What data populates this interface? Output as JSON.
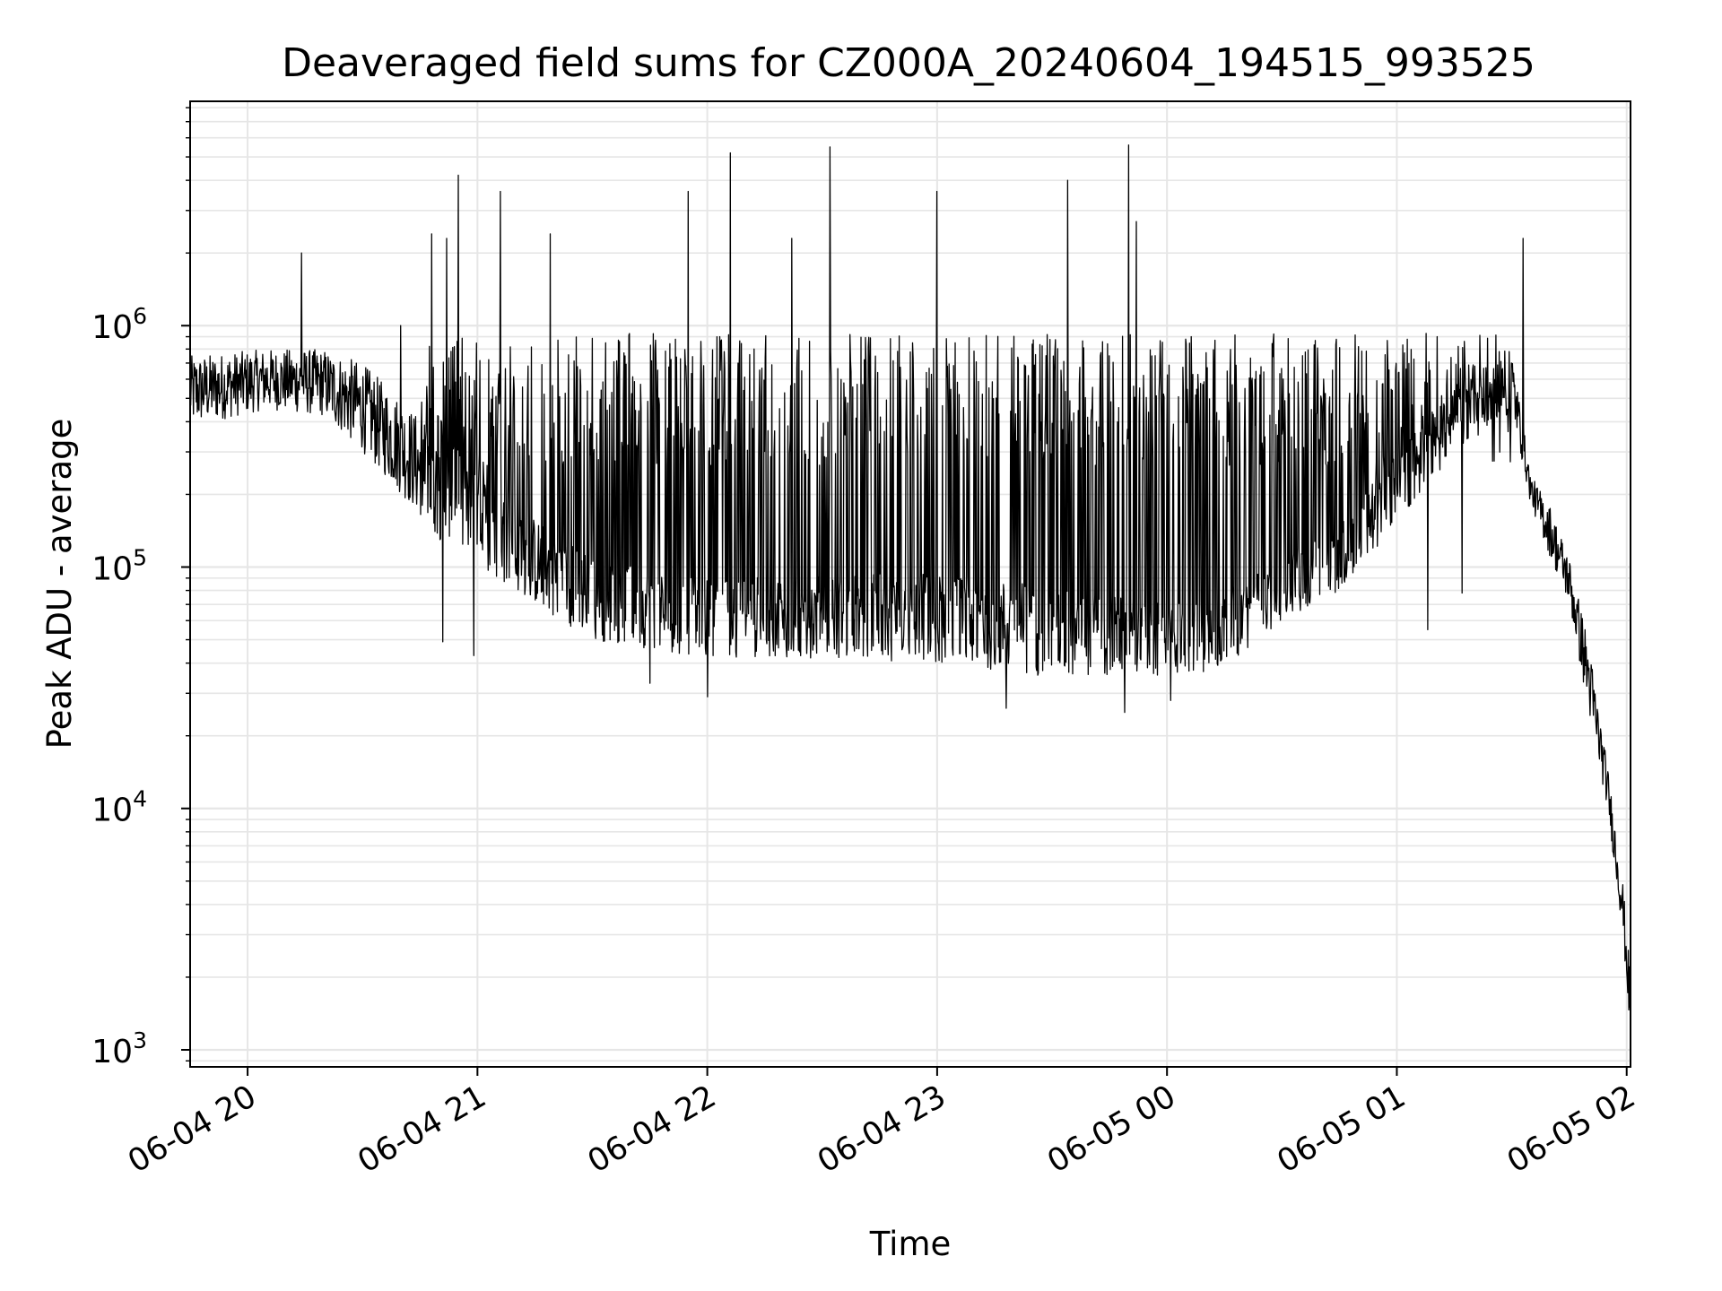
{
  "chart_data": {
    "type": "line",
    "title": "Deaveraged field sums for CZ000A_20240604_194515_993525",
    "xlabel": "Time",
    "ylabel": "Peak ADU - average",
    "yscale": "log",
    "xlim": [
      "2024-06-04 19:45",
      "2024-06-05 02:01"
    ],
    "ylim": [
      850,
      8500000
    ],
    "grid": true,
    "x_ticks": [
      {
        "t": "2024-06-04 20:00",
        "label": "06-04 20"
      },
      {
        "t": "2024-06-04 21:00",
        "label": "06-04 21"
      },
      {
        "t": "2024-06-04 22:00",
        "label": "06-04 22"
      },
      {
        "t": "2024-06-04 23:00",
        "label": "06-04 23"
      },
      {
        "t": "2024-06-05 00:00",
        "label": "06-05 00"
      },
      {
        "t": "2024-06-05 01:00",
        "label": "06-05 01"
      },
      {
        "t": "2024-06-05 02:00",
        "label": "06-05 02"
      }
    ],
    "y_ticks": [
      {
        "value": 1000,
        "base": "10",
        "exp": "3"
      },
      {
        "value": 10000,
        "base": "10",
        "exp": "4"
      },
      {
        "value": 100000,
        "base": "10",
        "exp": "5"
      },
      {
        "value": 1000000,
        "base": "10",
        "exp": "6"
      }
    ],
    "series_color": "#000000",
    "envelope": [
      {
        "t": "2024-06-04 19:45",
        "low": 380000,
        "high": 750000
      },
      {
        "t": "2024-06-04 20:05",
        "low": 450000,
        "high": 800000
      },
      {
        "t": "2024-06-04 20:20",
        "low": 420000,
        "high": 800000
      },
      {
        "t": "2024-06-04 20:30",
        "low": 300000,
        "high": 700000
      },
      {
        "t": "2024-06-04 20:40",
        "low": 200000,
        "high": 500000
      },
      {
        "t": "2024-06-04 20:50",
        "low": 130000,
        "high": 350000
      },
      {
        "t": "2024-06-04 21:00",
        "low": 100000,
        "high": 250000
      },
      {
        "t": "2024-06-04 21:15",
        "low": 70000,
        "high": 160000
      },
      {
        "t": "2024-06-04 21:30",
        "low": 50000,
        "high": 110000
      },
      {
        "t": "2024-06-04 22:00",
        "low": 42000,
        "high": 90000
      },
      {
        "t": "2024-06-04 22:30",
        "low": 42000,
        "high": 95000
      },
      {
        "t": "2024-06-04 23:00",
        "low": 40000,
        "high": 95000
      },
      {
        "t": "2024-06-04 23:30",
        "low": 35000,
        "high": 85000
      },
      {
        "t": "2024-06-05 00:00",
        "low": 35000,
        "high": 70000
      },
      {
        "t": "2024-06-05 00:15",
        "low": 38000,
        "high": 80000
      },
      {
        "t": "2024-06-05 00:30",
        "low": 60000,
        "high": 110000
      },
      {
        "t": "2024-06-05 00:45",
        "low": 80000,
        "high": 150000
      },
      {
        "t": "2024-06-05 01:00",
        "low": 150000,
        "high": 300000
      },
      {
        "t": "2024-06-05 01:15",
        "low": 300000,
        "high": 550000
      },
      {
        "t": "2024-06-05 01:30",
        "low": 450000,
        "high": 800000
      },
      {
        "t": "2024-06-05 01:35",
        "low": 180000,
        "high": 240000
      },
      {
        "t": "2024-06-05 01:40",
        "low": 110000,
        "high": 180000
      },
      {
        "t": "2024-06-05 01:45",
        "low": 70000,
        "high": 110000
      },
      {
        "t": "2024-06-05 01:50",
        "low": 25000,
        "high": 50000
      },
      {
        "t": "2024-06-05 01:55",
        "low": 10000,
        "high": 15000
      },
      {
        "t": "2024-06-05 01:59",
        "low": 3000,
        "high": 5000
      },
      {
        "t": "2024-06-05 02:01",
        "low": 1100,
        "high": 2000
      }
    ],
    "spike_high": [
      {
        "t": "2024-06-04 20:14",
        "value": 2000000
      },
      {
        "t": "2024-06-04 20:40",
        "value": 1000000
      },
      {
        "t": "2024-06-04 20:48",
        "value": 2400000
      },
      {
        "t": "2024-06-04 20:52",
        "value": 2300000
      },
      {
        "t": "2024-06-04 20:55",
        "value": 4200000
      },
      {
        "t": "2024-06-04 20:59",
        "value": 3700000
      },
      {
        "t": "2024-06-04 21:06",
        "value": 3600000
      },
      {
        "t": "2024-06-04 21:19",
        "value": 2400000
      },
      {
        "t": "2024-06-04 21:55",
        "value": 3600000
      },
      {
        "t": "2024-06-04 22:06",
        "value": 5200000
      },
      {
        "t": "2024-06-04 22:22",
        "value": 2300000
      },
      {
        "t": "2024-06-04 22:32",
        "value": 5500000
      },
      {
        "t": "2024-06-04 23:00",
        "value": 3600000
      },
      {
        "t": "2024-06-04 23:34",
        "value": 4000000
      },
      {
        "t": "2024-06-04 23:50",
        "value": 5600000
      },
      {
        "t": "2024-06-04 23:52",
        "value": 2700000
      },
      {
        "t": "2024-06-05 01:33",
        "value": 2300000
      }
    ],
    "spike_low": [
      {
        "t": "2024-06-04 20:51",
        "value": 49000
      },
      {
        "t": "2024-06-04 20:59",
        "value": 43000
      },
      {
        "t": "2024-06-04 21:45",
        "value": 33000
      },
      {
        "t": "2024-06-04 22:00",
        "value": 29000
      },
      {
        "t": "2024-06-04 23:18",
        "value": 26000
      },
      {
        "t": "2024-06-04 23:49",
        "value": 25000
      },
      {
        "t": "2024-06-05 00:01",
        "value": 28000
      },
      {
        "t": "2024-06-05 01:08",
        "value": 55000
      },
      {
        "t": "2024-06-05 01:17",
        "value": 78000
      }
    ]
  }
}
